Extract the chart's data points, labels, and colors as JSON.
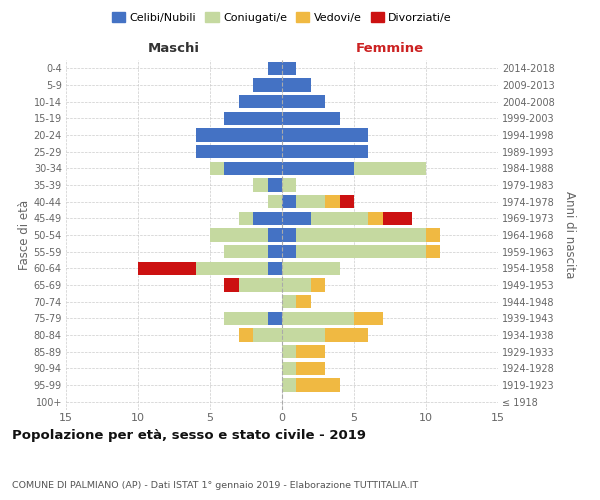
{
  "age_groups": [
    "100+",
    "95-99",
    "90-94",
    "85-89",
    "80-84",
    "75-79",
    "70-74",
    "65-69",
    "60-64",
    "55-59",
    "50-54",
    "45-49",
    "40-44",
    "35-39",
    "30-34",
    "25-29",
    "20-24",
    "15-19",
    "10-14",
    "5-9",
    "0-4"
  ],
  "birth_years": [
    "≤ 1918",
    "1919-1923",
    "1924-1928",
    "1929-1933",
    "1934-1938",
    "1939-1943",
    "1944-1948",
    "1949-1953",
    "1954-1958",
    "1959-1963",
    "1964-1968",
    "1969-1973",
    "1974-1978",
    "1979-1983",
    "1984-1988",
    "1989-1993",
    "1994-1998",
    "1999-2003",
    "2004-2008",
    "2009-2013",
    "2014-2018"
  ],
  "colors": {
    "celibi": "#4472C4",
    "coniugati": "#c5d9a0",
    "vedovi": "#f0b942",
    "divorziati": "#cc1111"
  },
  "maschi": {
    "celibi": [
      0,
      0,
      0,
      0,
      0,
      1,
      0,
      0,
      1,
      1,
      1,
      2,
      0,
      1,
      4,
      6,
      6,
      4,
      3,
      2,
      1
    ],
    "coniugati": [
      0,
      0,
      0,
      0,
      2,
      3,
      0,
      3,
      5,
      3,
      4,
      1,
      1,
      1,
      1,
      0,
      0,
      0,
      0,
      0,
      0
    ],
    "vedovi": [
      0,
      0,
      0,
      0,
      1,
      0,
      0,
      0,
      0,
      0,
      0,
      0,
      0,
      0,
      0,
      0,
      0,
      0,
      0,
      0,
      0
    ],
    "divorziati": [
      0,
      0,
      0,
      0,
      0,
      0,
      0,
      1,
      4,
      0,
      0,
      0,
      0,
      0,
      0,
      0,
      0,
      0,
      0,
      0,
      0
    ]
  },
  "femmine": {
    "celibi": [
      0,
      0,
      0,
      0,
      0,
      0,
      0,
      0,
      0,
      1,
      1,
      2,
      1,
      0,
      5,
      6,
      6,
      4,
      3,
      2,
      1
    ],
    "coniugati": [
      0,
      1,
      1,
      1,
      3,
      5,
      1,
      2,
      4,
      9,
      9,
      4,
      2,
      1,
      5,
      0,
      0,
      0,
      0,
      0,
      0
    ],
    "vedovi": [
      0,
      3,
      2,
      2,
      3,
      2,
      1,
      1,
      0,
      1,
      1,
      1,
      1,
      0,
      0,
      0,
      0,
      0,
      0,
      0,
      0
    ],
    "divorziati": [
      0,
      0,
      0,
      0,
      0,
      0,
      0,
      0,
      0,
      0,
      0,
      2,
      1,
      0,
      0,
      0,
      0,
      0,
      0,
      0,
      0
    ]
  },
  "title": "Popolazione per età, sesso e stato civile - 2019",
  "subtitle": "COMUNE DI PALMIANO (AP) - Dati ISTAT 1° gennaio 2019 - Elaborazione TUTTITALIA.IT",
  "xlabel_left": "Maschi",
  "xlabel_right": "Femmine",
  "ylabel_left": "Fasce di età",
  "ylabel_right": "Anni di nascita",
  "legend_labels": [
    "Celibi/Nubili",
    "Coniugati/e",
    "Vedovi/e",
    "Divorziati/e"
  ],
  "xlim": 15,
  "background_color": "#ffffff",
  "grid_color": "#cccccc"
}
